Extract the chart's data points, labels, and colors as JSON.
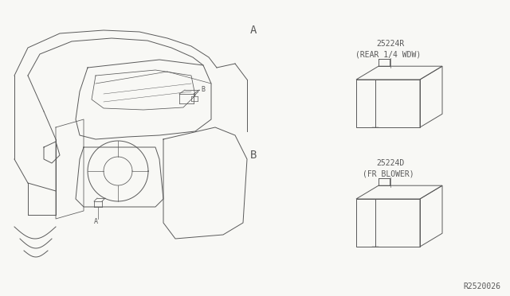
{
  "bg_color": "#f8f8f5",
  "line_color": "#5a5a5a",
  "part1_number": "25224R",
  "part1_desc": "(REAR 1/4 WDW)",
  "part2_number": "25224D",
  "part2_desc": "(FR BLOWER)",
  "watermark": "R2520026",
  "label_A": "A",
  "label_B": "B"
}
